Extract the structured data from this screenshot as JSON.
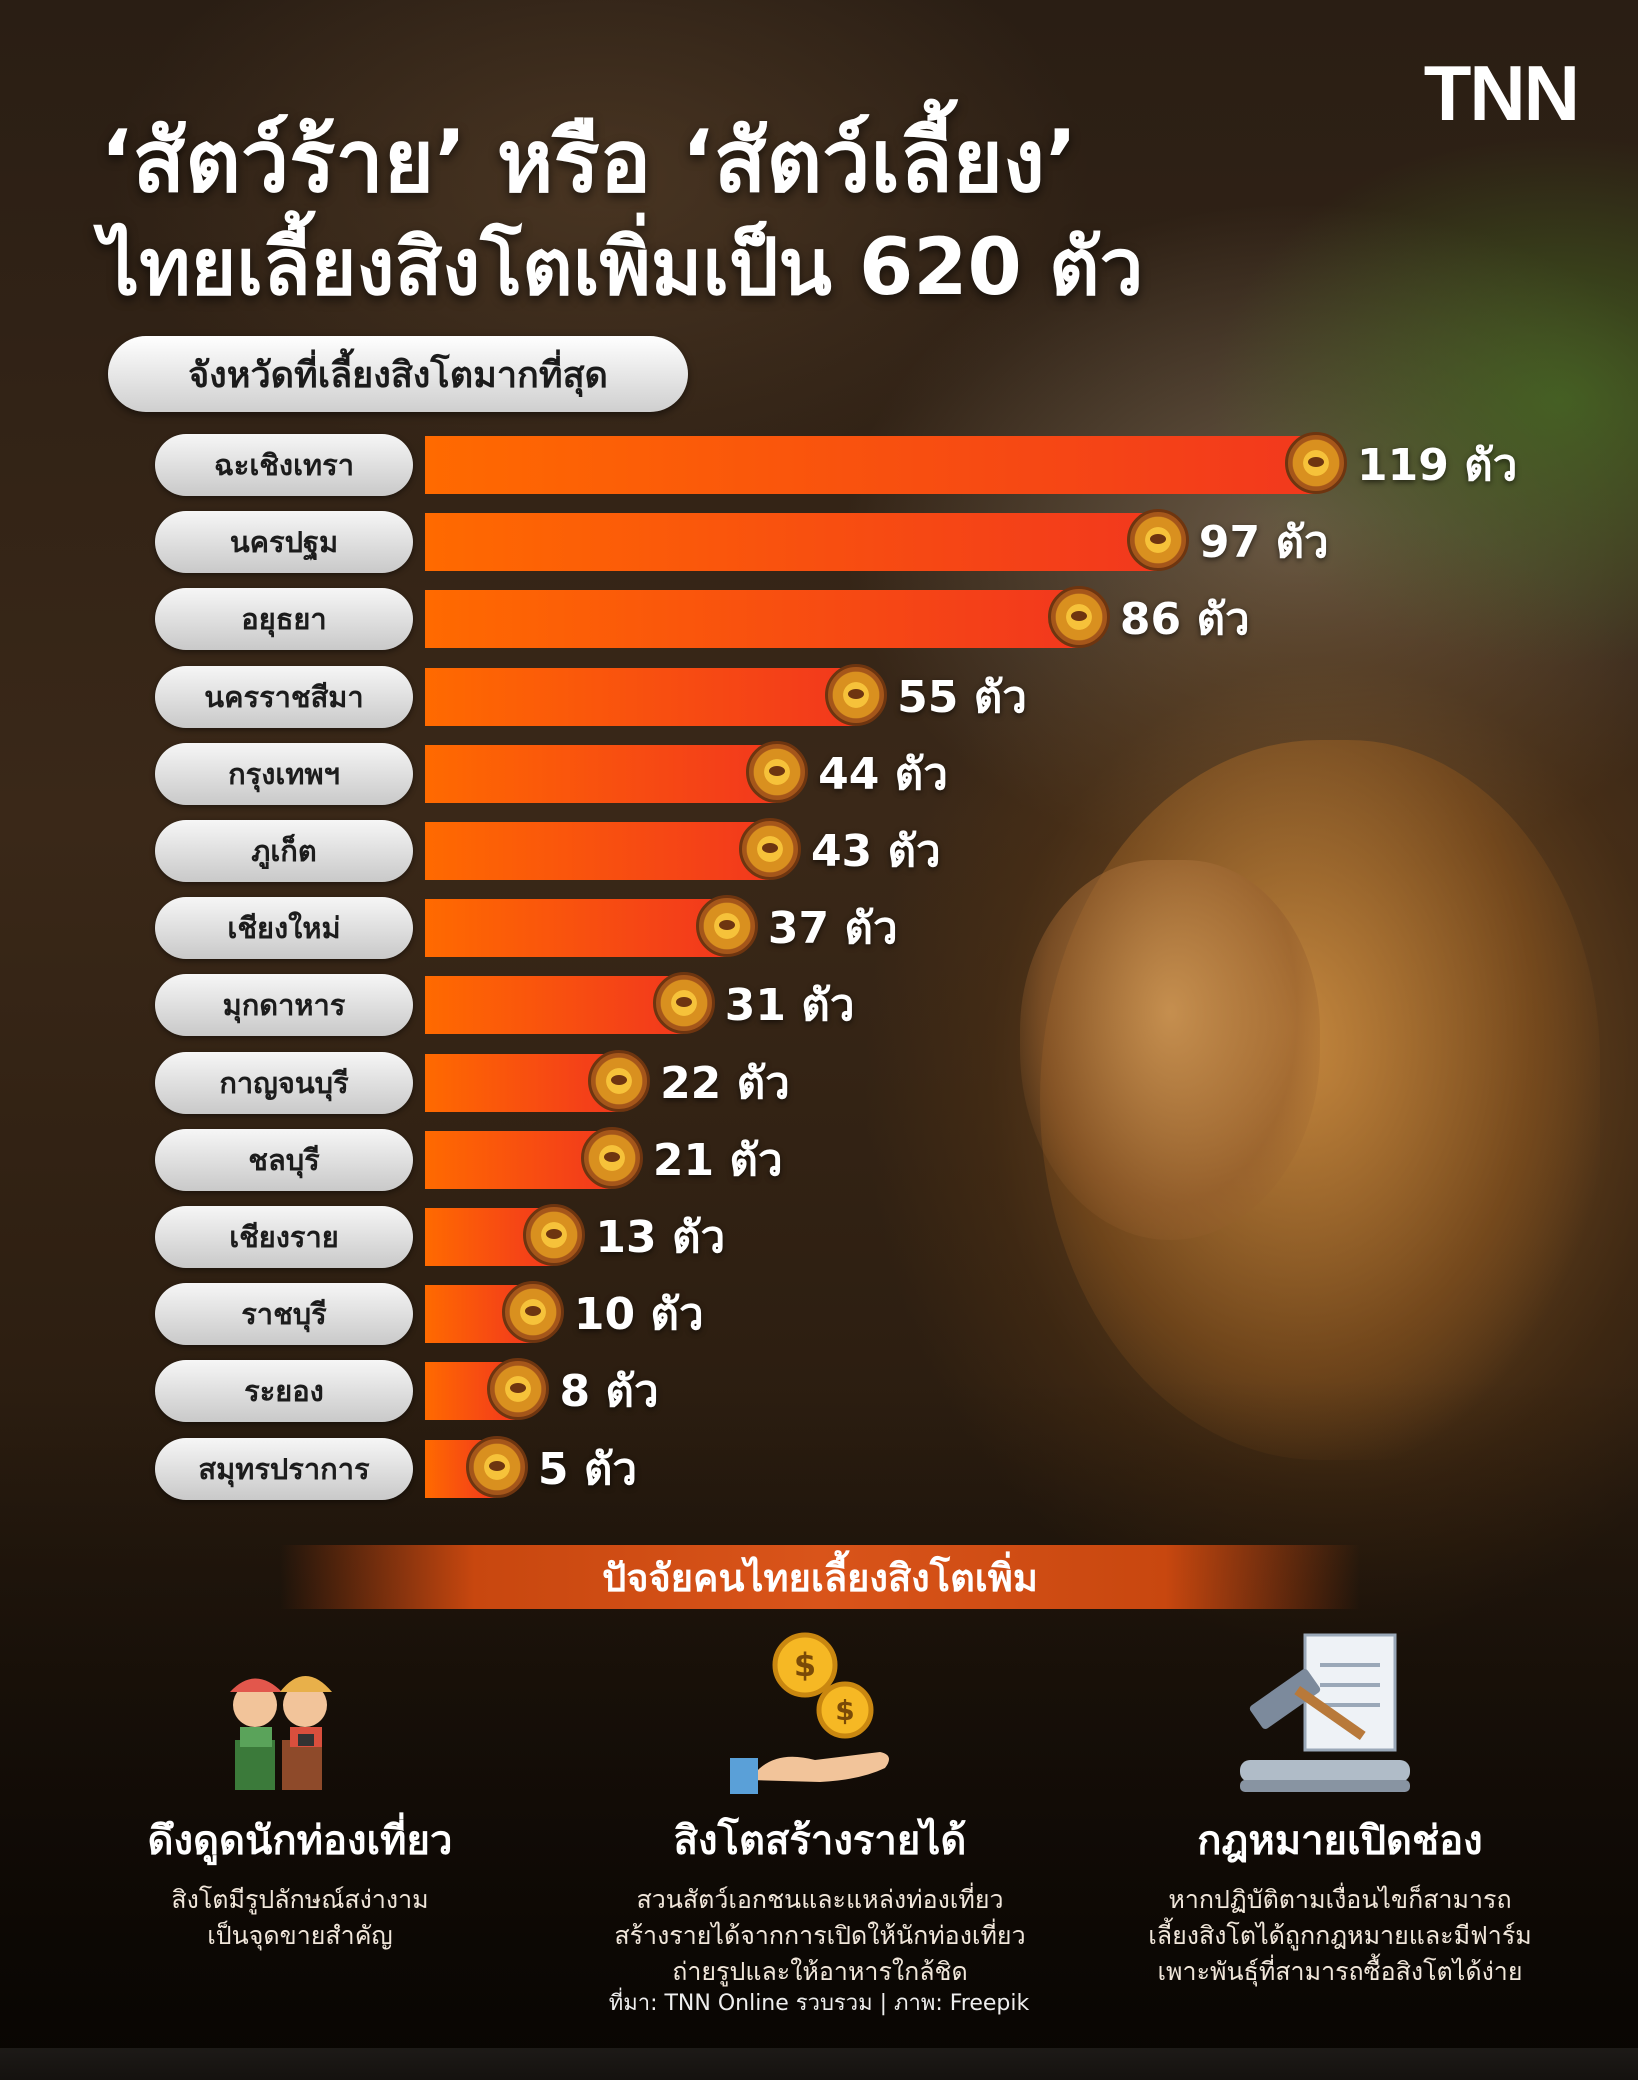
{
  "header": {
    "title_line1": "‘สัตว์ร้าย’ หรือ ‘สัตว์เลี้ยง’",
    "title_line2": "ไทยเลี้ยงสิงโตเพิ่มเป็น 620 ตัว",
    "logo": "TNN",
    "subtitle": "จังหวัดที่เลี้ยงสิงโตมากที่สุด"
  },
  "chart_data": {
    "type": "bar",
    "orientation": "horizontal",
    "title": "จังหวัดที่เลี้ยงสิงโตมากที่สุด",
    "categories": [
      "ฉะเชิงเทรา",
      "นครปฐม",
      "อยุธยา",
      "นครราชสีมา",
      "กรุงเทพฯ",
      "ภูเก็ต",
      "เชียงใหม่",
      "มุกดาหาร",
      "กาญจนบุรี",
      "ชลบุรี",
      "เชียงราย",
      "ราชบุรี",
      "ระยอง",
      "สมุทรปราการ"
    ],
    "values": [
      119,
      97,
      86,
      55,
      44,
      43,
      37,
      31,
      22,
      21,
      13,
      10,
      8,
      5
    ],
    "value_labels": [
      "119 ตัว",
      "97 ตัว",
      "86 ตัว",
      "55 ตัว",
      "44 ตัว",
      "43 ตัว",
      "37 ตัว",
      "31 ตัว",
      "22 ตัว",
      "21 ตัว",
      "13 ตัว",
      "10 ตัว",
      "8 ตัว",
      "5 ตัว"
    ],
    "bar_color_start": "#ff6a00",
    "bar_color_end": "#f2381d",
    "xlim": [
      0,
      119
    ],
    "grid": false,
    "legend": "none"
  },
  "factors": {
    "heading": "ปัจจัยคนไทยเลี้ยงสิงโตเพิ่ม",
    "items": [
      {
        "icon": "tourists-icon",
        "title": "ดึงดูดนักท่องเที่ยว",
        "desc_line1": "สิงโตมีรูปลักษณ์สง่างาม",
        "desc_line2": "เป็นจุดขายสำคัญ",
        "desc_line3": ""
      },
      {
        "icon": "coins-hand-icon",
        "title": "สิงโตสร้างรายได้",
        "desc_line1": "สวนสัตว์เอกชนและแหล่งท่องเที่ยว",
        "desc_line2": "สร้างรายได้จากการเปิดให้นักท่องเที่ยว",
        "desc_line3": "ถ่ายรูปและให้อาหารใกล้ชิด"
      },
      {
        "icon": "gavel-law-icon",
        "title": "กฎหมายเปิดช่อง",
        "desc_line1": "หากปฏิบัติตามเงื่อนไขก็สามารถ",
        "desc_line2": "เลี้ยงสิงโตได้ถูกกฎหมายและมีฟาร์ม",
        "desc_line3": "เพาะพันธุ์ที่สามารถซื้อสิงโตได้ง่าย"
      }
    ]
  },
  "source": "ที่มา: TNN Online รวบรวม | ภาพ: Freepik"
}
